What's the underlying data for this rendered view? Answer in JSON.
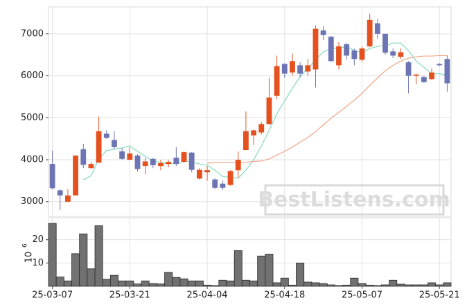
{
  "chart_data": [
    {
      "type": "candlestick",
      "open": [
        3900,
        3270,
        3000,
        3150,
        4250,
        3800,
        3930,
        4620,
        4470,
        4200,
        4000,
        4100,
        3850,
        4020,
        3850,
        3900,
        4050,
        3950,
        4170,
        3550,
        3700,
        3530,
        3430,
        3400,
        3750,
        4230,
        4580,
        4650,
        4850,
        5520,
        6280,
        6080,
        6250,
        6100,
        6150,
        7080,
        6930,
        6250,
        6750,
        6600,
        6380,
        6700,
        7250,
        7000,
        6580,
        6450,
        6320,
        6000,
        5970,
        5920,
        6280,
        6400
      ],
      "high": [
        4220,
        3300,
        3300,
        4100,
        4380,
        3950,
        5030,
        4700,
        4680,
        4280,
        4300,
        4130,
        4050,
        4050,
        4000,
        3990,
        4300,
        4200,
        4180,
        3800,
        3850,
        3560,
        3510,
        3750,
        4200,
        5150,
        4720,
        4900,
        5950,
        6480,
        6300,
        6530,
        6320,
        6400,
        7200,
        7180,
        6950,
        6800,
        6780,
        6650,
        6700,
        7480,
        7350,
        7000,
        6650,
        6650,
        6350,
        6050,
        6000,
        6180,
        6300,
        6480
      ],
      "low": [
        3300,
        2800,
        2990,
        3150,
        3800,
        3780,
        3930,
        4500,
        4250,
        4000,
        3990,
        3720,
        3650,
        3800,
        3750,
        3820,
        3850,
        3920,
        3700,
        3530,
        3500,
        3300,
        3280,
        3380,
        3580,
        4230,
        4350,
        4600,
        4830,
        5450,
        5950,
        6000,
        5950,
        6000,
        5720,
        6850,
        6330,
        6150,
        6380,
        6250,
        6320,
        6680,
        6880,
        6500,
        6420,
        6400,
        5580,
        5800,
        5830,
        5900,
        6230,
        5620
      ],
      "close": [
        3320,
        3150,
        3150,
        4100,
        3880,
        3900,
        4680,
        4520,
        4300,
        4020,
        4150,
        3780,
        3960,
        3870,
        3920,
        3950,
        3900,
        4180,
        3760,
        3760,
        3750,
        3330,
        3330,
        3730,
        4000,
        4680,
        4700,
        4850,
        5480,
        6230,
        6050,
        6350,
        6050,
        6250,
        7120,
        6970,
        6350,
        6700,
        6480,
        6400,
        6650,
        7330,
        7000,
        6550,
        6480,
        6560,
        6000,
        6030,
        5850,
        6080,
        6250,
        5820
      ],
      "up_color": "#e4511f",
      "down_color": "#6c74b4",
      "lines": [
        {
          "color": "#82d9bb",
          "values": [
            null,
            null,
            null,
            null,
            3520,
            3620,
            4020,
            4220,
            4250,
            4280,
            4330,
            4200,
            4080,
            3980,
            3930,
            3900,
            3920,
            3960,
            3950,
            3900,
            3870,
            3750,
            3600,
            3580,
            3560,
            3750,
            4000,
            4330,
            4700,
            5100,
            5400,
            5700,
            5980,
            6180,
            6380,
            6570,
            6650,
            6650,
            6700,
            6600,
            6550,
            6650,
            6700,
            6720,
            6780,
            6780,
            6600,
            6350,
            6200,
            6050,
            6050,
            6020
          ]
        },
        {
          "color": "#f0a485",
          "values": [
            null,
            null,
            null,
            null,
            null,
            null,
            null,
            null,
            null,
            null,
            null,
            null,
            null,
            null,
            null,
            null,
            null,
            null,
            null,
            null,
            3920,
            3930,
            3930,
            3940,
            3930,
            3940,
            3960,
            3970,
            4020,
            4110,
            4200,
            4300,
            4420,
            4530,
            4670,
            4830,
            4990,
            5130,
            5270,
            5420,
            5580,
            5770,
            5950,
            6120,
            6250,
            6350,
            6420,
            6450,
            6470,
            6470,
            6480,
            6480
          ]
        }
      ],
      "ylim": [
        2650,
        7640
      ],
      "yticks": [
        3000,
        4000,
        5000,
        6000,
        7000
      ],
      "grid": true,
      "watermark": "BestListens.com"
    },
    {
      "type": "bar",
      "categories": [
        "25-03-07",
        null,
        null,
        null,
        null,
        null,
        null,
        null,
        null,
        null,
        "25-03-21",
        null,
        null,
        null,
        null,
        null,
        null,
        null,
        null,
        null,
        "25-04-04",
        null,
        null,
        null,
        null,
        null,
        null,
        null,
        null,
        null,
        "25-04-18",
        null,
        null,
        null,
        null,
        null,
        null,
        null,
        null,
        null,
        "25-05-07",
        null,
        null,
        null,
        null,
        null,
        null,
        null,
        null,
        null,
        "25-05-21",
        null
      ],
      "values": [
        27,
        4,
        2.3,
        14,
        22.5,
        7.5,
        26,
        3,
        4.7,
        2.3,
        2.3,
        1,
        2.3,
        1.2,
        1,
        6,
        3.8,
        3.2,
        2.3,
        2.3,
        0.5,
        0.3,
        2.6,
        2.3,
        15.3,
        2.6,
        2.3,
        13,
        13.8,
        1.5,
        3.5,
        0.5,
        10,
        1.8,
        1.5,
        1.2,
        0.6,
        0.3,
        0.5,
        3.5,
        1.2,
        0.5,
        0.3,
        0.6,
        2.6,
        0.9,
        0.6,
        0.6,
        0.6,
        1.5,
        0.6,
        1.5
      ],
      "color": "#717171",
      "ylim": [
        0,
        29.4
      ],
      "yticks": [
        10,
        20
      ],
      "grid": true,
      "y_label": "10",
      "y_label_exponent": "6"
    }
  ]
}
